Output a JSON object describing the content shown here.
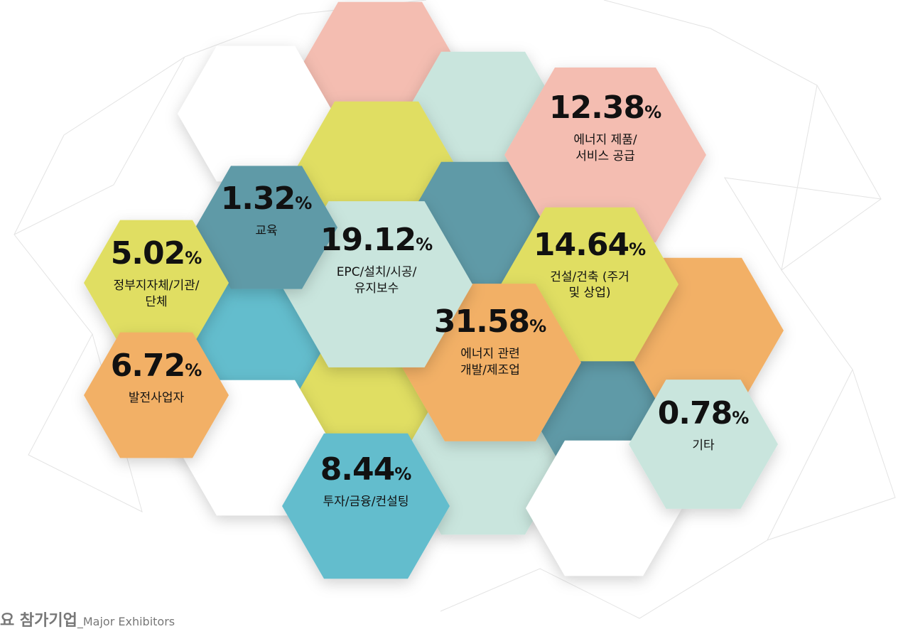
{
  "chart_data": {
    "type": "hexagon",
    "categories": [
      "에너지 제품/\n서비스 공급",
      "건설/건축 (주거\n및 상업)",
      "에너지 관련\n개발/제조업",
      "EPC/설치/시공/\n유지보수",
      "교육",
      "정부지자체/기관/\n단체",
      "발전사업자",
      "투자/금융/컨설팅",
      "기타"
    ],
    "values": [
      12.38,
      14.64,
      31.58,
      19.12,
      1.32,
      5.02,
      6.72,
      8.44,
      0.78
    ],
    "unit": "%",
    "colors": [
      "#f4bdb1",
      "#e0de62",
      "#f2b066",
      "#c9e5dd",
      "#5f9aa7",
      "#e0de62",
      "#f2b066",
      "#64bdcd",
      "#c9e5dd"
    ]
  },
  "footer": {
    "title": "요 참가기업",
    "subtitle": "_Major Exhibitors"
  }
}
